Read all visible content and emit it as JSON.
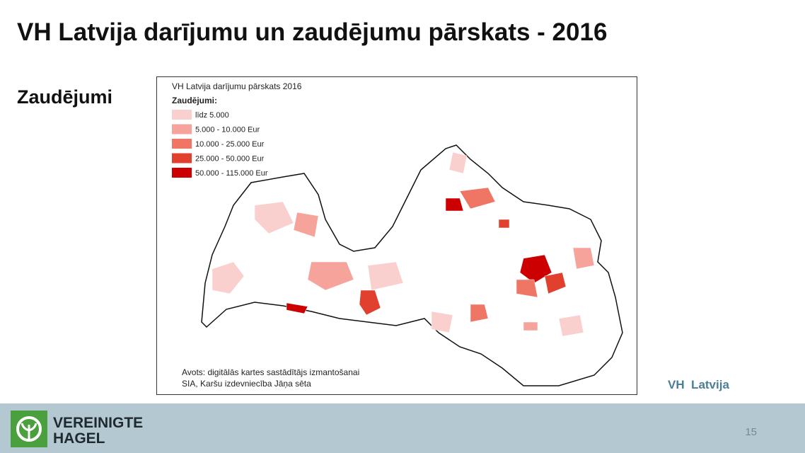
{
  "slide": {
    "title": "VH Latvija darījumu un zaudējumu pārskats - 2016",
    "subtitle": "Zaudējumi",
    "map": {
      "title": "VH Latvija darījumu pārskats 2016",
      "legend_title": "Zaudējumi:",
      "legend": [
        {
          "label": "līdz 5.000",
          "color": "#fad0cf"
        },
        {
          "label": "5.000 - 10.000 Eur",
          "color": "#f6a39c"
        },
        {
          "label": "10.000 - 25.000 Eur",
          "color": "#ef7564"
        },
        {
          "label": "25.000 - 50.000 Eur",
          "color": "#e2402e"
        },
        {
          "label": "50.000 - 115.000 Eur",
          "color": "#cc0000"
        }
      ],
      "source": [
        "Avots: digitālās kartes sastādītājs izmantošanai",
        "SIA, Karšu izdevniecība Jāņa sēta"
      ]
    },
    "brand": "VH  Latvija",
    "footer": {
      "logo_line1": "VEREINIGTE",
      "logo_line2": "HAGEL",
      "page_number": "15"
    }
  }
}
